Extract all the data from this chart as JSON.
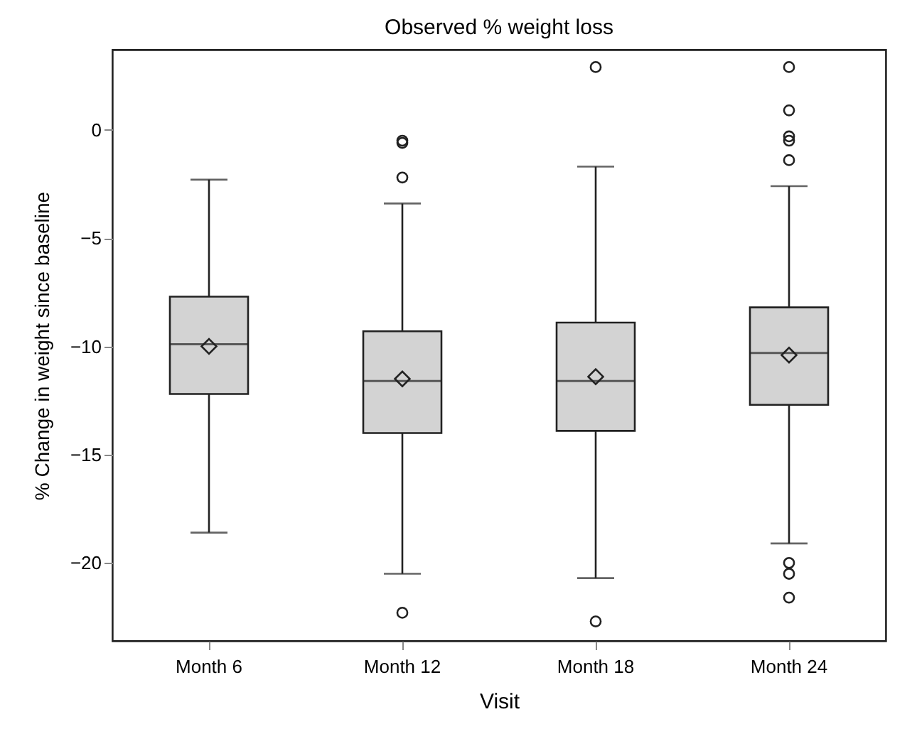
{
  "chart_data": {
    "type": "box",
    "title": "Observed % weight loss",
    "xlabel": "Visit",
    "ylabel": "% Change in weight since baseline",
    "categories": [
      "Month 6",
      "Month 12",
      "Month 18",
      "Month 24"
    ],
    "color": "#d3d3d3",
    "boxes": [
      {
        "low": -18.6,
        "q1": -12.2,
        "median": -9.9,
        "q3": -7.7,
        "high": -2.3,
        "mean": -10.0
      },
      {
        "low": -20.5,
        "q1": -14.0,
        "median": -11.6,
        "q3": -9.3,
        "high": -3.4,
        "mean": -11.5,
        "outliers": [
          -0.5,
          -0.6,
          -2.2,
          -22.3
        ]
      },
      {
        "low": -20.7,
        "q1": -13.9,
        "median": -11.6,
        "q3": -8.9,
        "high": -1.7,
        "mean": -11.4,
        "outliers": [
          2.9,
          -22.7
        ]
      },
      {
        "low": -19.1,
        "q1": -12.7,
        "median": -10.3,
        "q3": -8.2,
        "high": -2.6,
        "mean": -10.4,
        "outliers": [
          2.9,
          0.9,
          -0.3,
          -0.5,
          -1.4,
          -20.0,
          -20.5,
          -21.6
        ]
      }
    ],
    "ylim": [
      -23.6,
      3.7
    ],
    "yticks": [
      -20,
      -15,
      -10,
      -5,
      0
    ],
    "grid": false,
    "marker": "diamond"
  }
}
